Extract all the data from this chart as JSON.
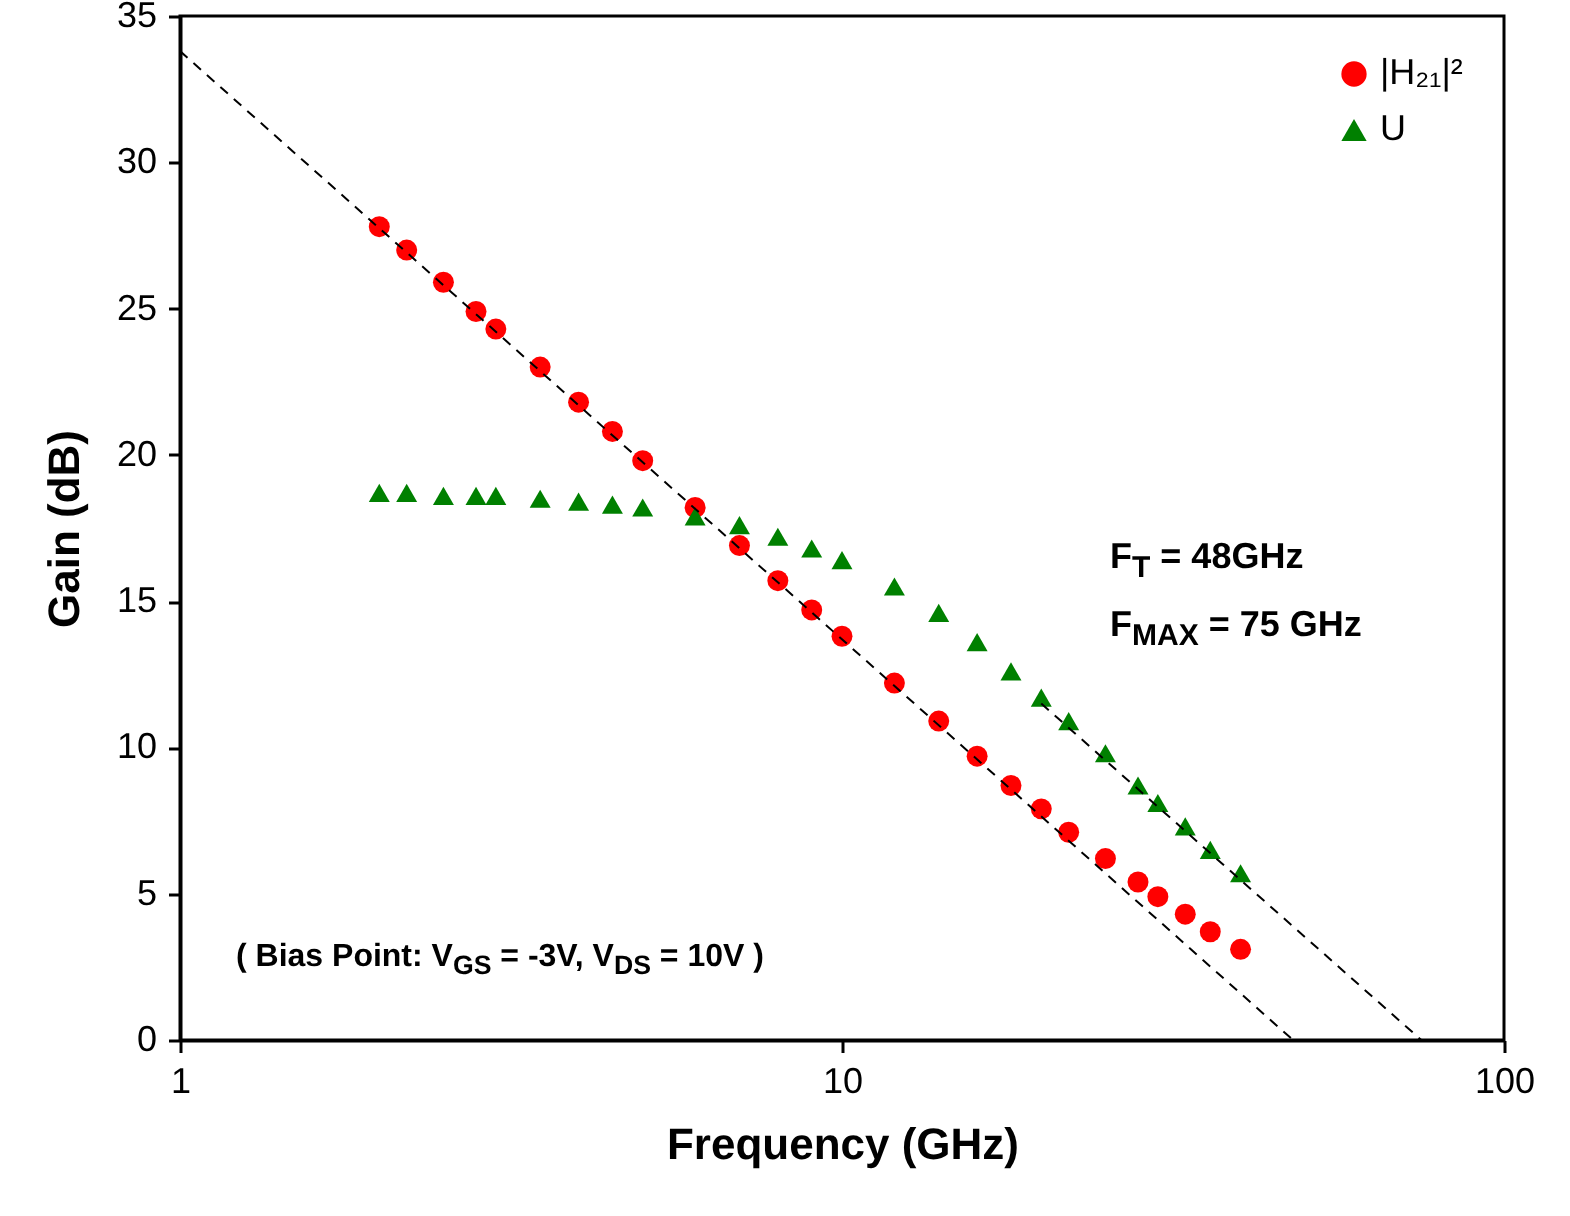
{
  "chart_data": {
    "type": "scatter",
    "xlabel": "Frequency (GHz)",
    "ylabel": "Gain (dB)",
    "log": "x",
    "xlim": [
      1,
      100
    ],
    "xticks": [
      1,
      10,
      100
    ],
    "ylim": [
      0,
      35
    ],
    "yticks": [
      0,
      5,
      10,
      15,
      20,
      25,
      30,
      35
    ],
    "grid": false,
    "legend": "top right",
    "annotations": [
      "F$_{T}$ = 48GHz",
      "F$_{MAX}$ = 75 GHz",
      "( Bias Point: V$_{GS}$ = -3V, V$_{DS}$ = 10V )"
    ],
    "series": [
      {
        "name": "|H₂₁|²",
        "color": "#ff0000",
        "marker": "circle",
        "x": [
          2,
          2.2,
          2.5,
          2.8,
          3,
          3.5,
          4,
          4.5,
          5,
          6,
          7,
          8,
          9,
          10,
          12,
          14,
          16,
          18,
          20,
          22,
          25,
          28,
          30,
          33,
          36,
          40
        ],
        "values": [
          27.8,
          27.0,
          25.9,
          24.9,
          24.3,
          23.0,
          21.8,
          20.8,
          19.8,
          18.2,
          16.9,
          15.7,
          14.7,
          13.8,
          12.2,
          10.9,
          9.7,
          8.7,
          7.9,
          7.1,
          6.2,
          5.4,
          4.9,
          4.3,
          3.7,
          3.1
        ]
      },
      {
        "name": "U",
        "color": "#008000",
        "marker": "triangle",
        "x": [
          2,
          2.2,
          2.5,
          2.8,
          3,
          3.5,
          4,
          4.5,
          5,
          6,
          7,
          8,
          9,
          10,
          12,
          14,
          16,
          18,
          20,
          22,
          25,
          28,
          30,
          33,
          36,
          40
        ],
        "values": [
          18.7,
          18.7,
          18.6,
          18.6,
          18.6,
          18.5,
          18.4,
          18.3,
          18.2,
          17.9,
          17.6,
          17.2,
          16.8,
          16.4,
          15.5,
          14.6,
          13.6,
          12.6,
          11.7,
          10.9,
          9.8,
          8.7,
          8.1,
          7.3,
          6.5,
          5.7
        ]
      },
      {
        "type": "line",
        "color": "#000000",
        "line_style": "dashed",
        "x": [
          1,
          48
        ],
        "values": [
          33.8,
          0
        ]
      },
      {
        "type": "line",
        "color": "#000000",
        "line_style": "dashed",
        "x": [
          20,
          75
        ],
        "values": [
          11.5,
          0
        ]
      }
    ]
  }
}
